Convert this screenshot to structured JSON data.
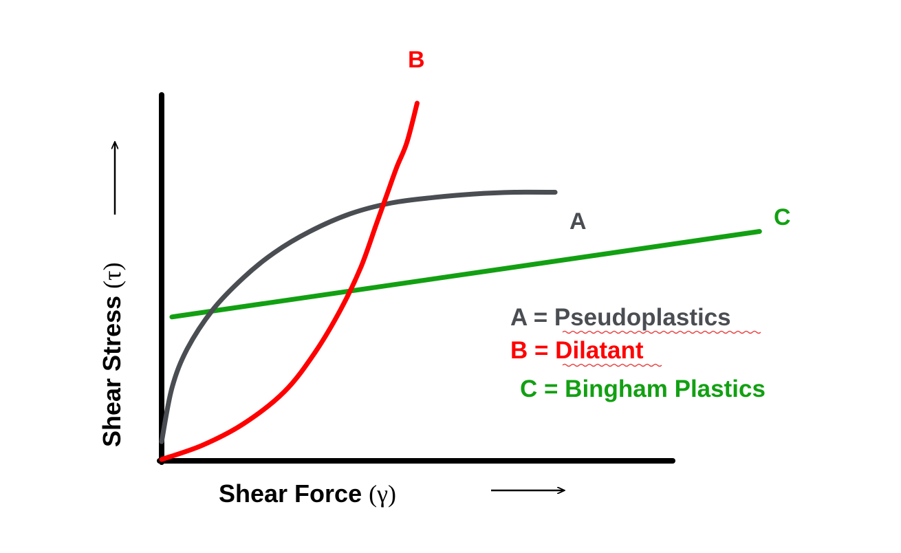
{
  "chart_data": {
    "type": "line",
    "xlabel": "Shear Force",
    "xsymbol": "(γ)",
    "ylabel": "Shear Stress",
    "ysymbol": "(τ)",
    "xlim": [
      0,
      100
    ],
    "ylim": [
      0,
      100
    ],
    "grid": false,
    "legend_position": "right",
    "series": [
      {
        "name": "A",
        "label": "A",
        "legend": "A = Pseudoplastics",
        "color": "#4a4d52",
        "x": [
          0,
          2,
          5,
          10,
          16,
          22,
          29,
          37,
          45,
          53,
          61,
          69,
          77
        ],
        "y": [
          5,
          20,
          31,
          42,
          51,
          58,
          64,
          69,
          72,
          73.5,
          74.5,
          75,
          75
        ]
      },
      {
        "name": "B",
        "label": "B",
        "legend": "B = Dilatant",
        "color": "#ff0000",
        "x": [
          0,
          8,
          16,
          24,
          30,
          35,
          39,
          42,
          44,
          46,
          48,
          50
        ],
        "y": [
          0,
          4,
          10,
          19,
          30,
          42,
          54,
          66,
          74,
          82,
          89,
          100
        ]
      },
      {
        "name": "C",
        "label": "C",
        "legend": "C = Bingham Plastics",
        "color": "#12a012",
        "x": [
          2,
          117
        ],
        "y": [
          40,
          64
        ]
      }
    ]
  }
}
